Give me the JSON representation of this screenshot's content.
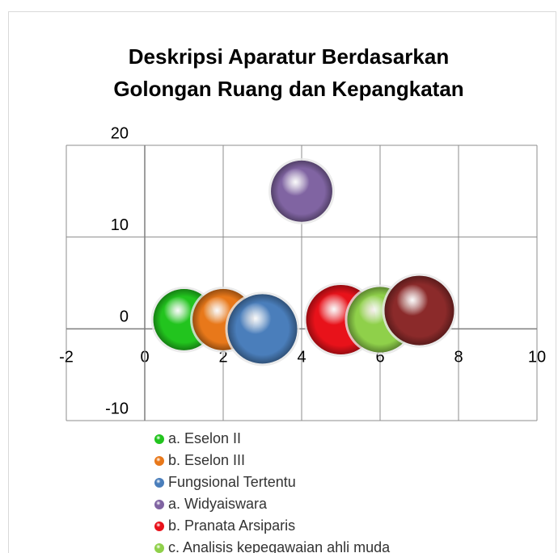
{
  "chart_data": {
    "type": "bubble",
    "title": [
      "Deskripsi Aparatur Berdasarkan",
      "Golongan Ruang dan Kepangkatan"
    ],
    "xlim": [
      -2,
      10
    ],
    "xticks": [
      -2,
      0,
      2,
      4,
      6,
      8,
      10
    ],
    "ylim": [
      -10,
      20
    ],
    "yticks": [
      -10,
      0,
      10,
      20
    ],
    "grid": true,
    "legend": "bottom",
    "series": [
      {
        "name": "a. Eselon II",
        "color": "#22c41e",
        "x": [
          1
        ],
        "values": [
          1
        ],
        "sizes": [
          7
        ]
      },
      {
        "name": "b. Eselon III",
        "color": "#e8781a",
        "x": [
          2
        ],
        "values": [
          1
        ],
        "sizes": [
          7
        ]
      },
      {
        "name": "Fungsional Tertentu",
        "color": "#4a7ebb",
        "x": [
          3
        ],
        "values": [
          0
        ],
        "sizes": [
          9
        ]
      },
      {
        "name": "a. Widyaiswara",
        "color": "#8064a2",
        "x": [
          4
        ],
        "values": [
          15
        ],
        "sizes": [
          7
        ]
      },
      {
        "name": "b. Pranata Arsiparis",
        "color": "#e8121a",
        "x": [
          5
        ],
        "values": [
          1
        ],
        "sizes": [
          9
        ]
      },
      {
        "name": "c. Analisis kepegawaian ahli muda",
        "color": "#8fd04a",
        "x": [
          6
        ],
        "values": [
          1
        ],
        "sizes": [
          8
        ]
      },
      {
        "color": "#8b2a2a",
        "x": [
          7
        ],
        "values": [
          2
        ],
        "sizes": [
          9
        ]
      }
    ]
  }
}
